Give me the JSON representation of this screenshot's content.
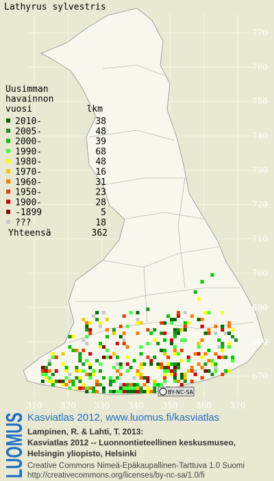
{
  "header": {
    "title": "Lathyrus sylvestris"
  },
  "legend": {
    "heading": [
      "Uusimman",
      "havainnon",
      "vuosi"
    ],
    "count_heading": "lkm",
    "rows": [
      {
        "label": "2010-",
        "count": 38,
        "color": "#006400"
      },
      {
        "label": "2005-",
        "count": 48,
        "color": "#1e8c1e"
      },
      {
        "label": "2000-",
        "count": 39,
        "color": "#00c000"
      },
      {
        "label": "1990-",
        "count": 68,
        "color": "#40ff40"
      },
      {
        "label": "1980-",
        "count": 48,
        "color": "#ffff00"
      },
      {
        "label": "1970-",
        "count": 16,
        "color": "#f0c800"
      },
      {
        "label": "1960-",
        "count": 31,
        "color": "#ff7800"
      },
      {
        "label": "1950-",
        "count": 23,
        "color": "#e04000"
      },
      {
        "label": "1900-",
        "count": 28,
        "color": "#c80000"
      },
      {
        "label": "-1899",
        "count": 5,
        "color": "#800000"
      },
      {
        "label": "???",
        "count": 18,
        "color": "#c8c8c8"
      }
    ],
    "total_label": "Yhteensä",
    "total": 362
  },
  "map": {
    "y_labels": [
      770,
      760,
      750,
      740,
      730,
      720,
      710,
      700,
      690,
      680,
      670
    ],
    "x_labels": [
      310,
      320,
      330,
      340,
      350,
      360,
      370
    ]
  },
  "license_badge": "BY-NC-SA",
  "footer": {
    "logo": "LUOMUS",
    "link": "Kasviatlas 2012, www.luomus.fi/kasviatlas",
    "citation": [
      "Lampinen, R. & Lahti, T. 2013:",
      "Kasviatlas 2012 -- Luonnontieteellinen keskusmuseo,",
      "Helsingin yliopisto, Helsinki"
    ],
    "license": [
      "Creative Commons Nimeä-Epäkaupallinen-Tarttuva 1.0 Suomi",
      "http://creativecommons.org/licenses/by-nc-sa/1.0/fi"
    ]
  }
}
